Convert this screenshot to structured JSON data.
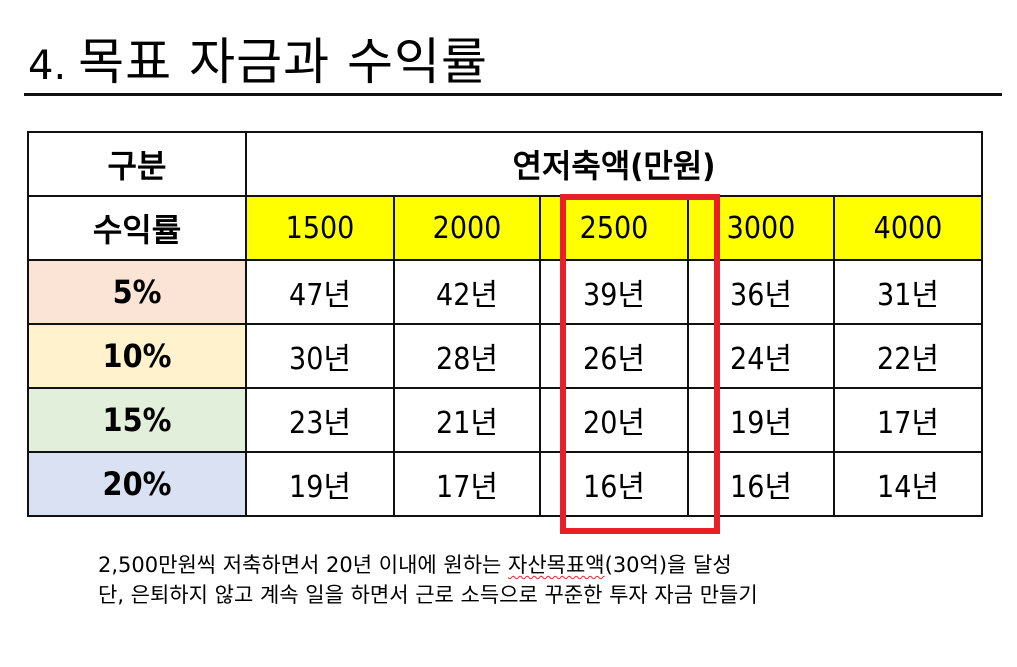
{
  "title": {
    "number": "4.",
    "text": "목표 자금과 수익률"
  },
  "table": {
    "header_category": "구분",
    "header_savings": "연저축액(만원)",
    "header_rate": "수익률",
    "amounts": [
      "1500",
      "2000",
      "2500",
      "3000",
      "4000"
    ],
    "rows": [
      {
        "rate": "5%",
        "values": [
          "47년",
          "42년",
          "39년",
          "36년",
          "31년"
        ]
      },
      {
        "rate": "10%",
        "values": [
          "30년",
          "28년",
          "26년",
          "24년",
          "22년"
        ]
      },
      {
        "rate": "15%",
        "values": [
          "23년",
          "21년",
          "20년",
          "19년",
          "17년"
        ]
      },
      {
        "rate": "20%",
        "values": [
          "19년",
          "17년",
          "16년",
          "16년",
          "14년"
        ]
      }
    ],
    "highlight_column": "2500",
    "colors": {
      "highlight_border": "#e8202a",
      "header_fill": "#ffff00",
      "row_5": "#fbe4d5",
      "row_10": "#fff2cc",
      "row_15": "#e2efda",
      "row_20": "#d9e1f2"
    }
  },
  "note": {
    "line1_pre": "2,500만원씩 저축하면서 20년 이내에 원하는 ",
    "line1_underlined": "자산목표액",
    "line1_post": "(30억)을 달성",
    "line2": "단, 은퇴하지 않고 계속 일을 하면서 근로 소득으로 꾸준한 투자 자금 만들기"
  }
}
